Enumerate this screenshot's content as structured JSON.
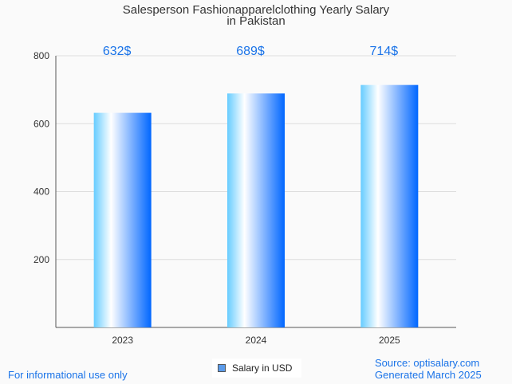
{
  "chart_data": {
    "type": "bar",
    "title": "Salesperson Fashionapparelclothing Yearly Salary",
    "subtitle": "in Pakistan",
    "categories": [
      "2023",
      "2024",
      "2025"
    ],
    "values": [
      632,
      689,
      714
    ],
    "data_labels": [
      "632$",
      "689$",
      "714$"
    ],
    "ylim": [
      0,
      800
    ],
    "yticks": [
      200,
      400,
      600,
      800
    ],
    "ytick_labels": [
      "200",
      "400",
      "600",
      "800"
    ],
    "legend": "Salary in USD",
    "legend_position": "bottom-center",
    "grid": true
  },
  "footer": {
    "left": "For informational use only",
    "source": "Source: optisalary.com",
    "generated": "Generated March 2025"
  },
  "colors": {
    "label": "#1a73e8",
    "bar_dark": "#0066ff",
    "bar_light": "#66ccff"
  }
}
